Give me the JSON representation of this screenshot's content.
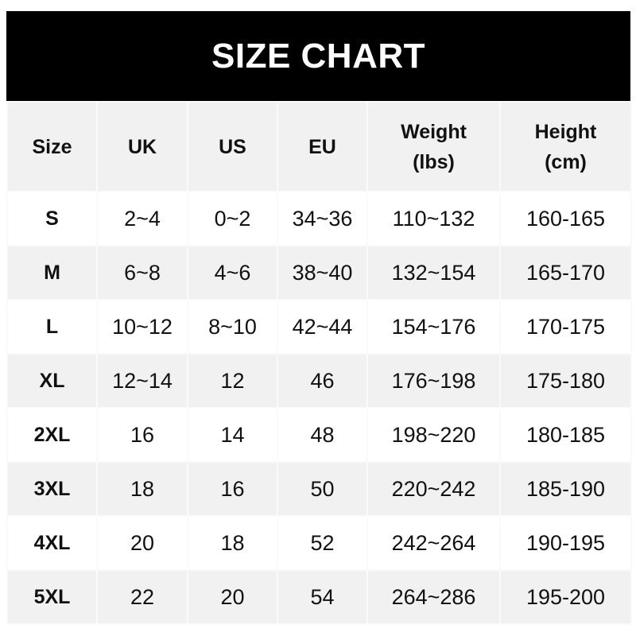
{
  "chart_data": {
    "type": "table",
    "title": "SIZE CHART",
    "columns": [
      [
        "Size"
      ],
      [
        "UK"
      ],
      [
        "US"
      ],
      [
        "EU"
      ],
      [
        "Weight",
        "(lbs)"
      ],
      [
        "Height",
        "(cm)"
      ]
    ],
    "rows": [
      [
        "S",
        "2~4",
        "0~2",
        "34~36",
        "110~132",
        "160-165"
      ],
      [
        "M",
        "6~8",
        "4~6",
        "38~40",
        "132~154",
        "165-170"
      ],
      [
        "L",
        "10~12",
        "8~10",
        "42~44",
        "154~176",
        "170-175"
      ],
      [
        "XL",
        "12~14",
        "12",
        "46",
        "176~198",
        "175-180"
      ],
      [
        "2XL",
        "16",
        "14",
        "48",
        "198~220",
        "180-185"
      ],
      [
        "3XL",
        "18",
        "16",
        "50",
        "220~242",
        "185-190"
      ],
      [
        "4XL",
        "20",
        "18",
        "52",
        "242~264",
        "190-195"
      ],
      [
        "5XL",
        "22",
        "20",
        "54",
        "264~286",
        "195-200"
      ]
    ],
    "colors": {
      "title_bg": "#000000",
      "title_text": "#ffffff",
      "stripe": "#f1f1f1",
      "row": "#ffffff"
    }
  }
}
